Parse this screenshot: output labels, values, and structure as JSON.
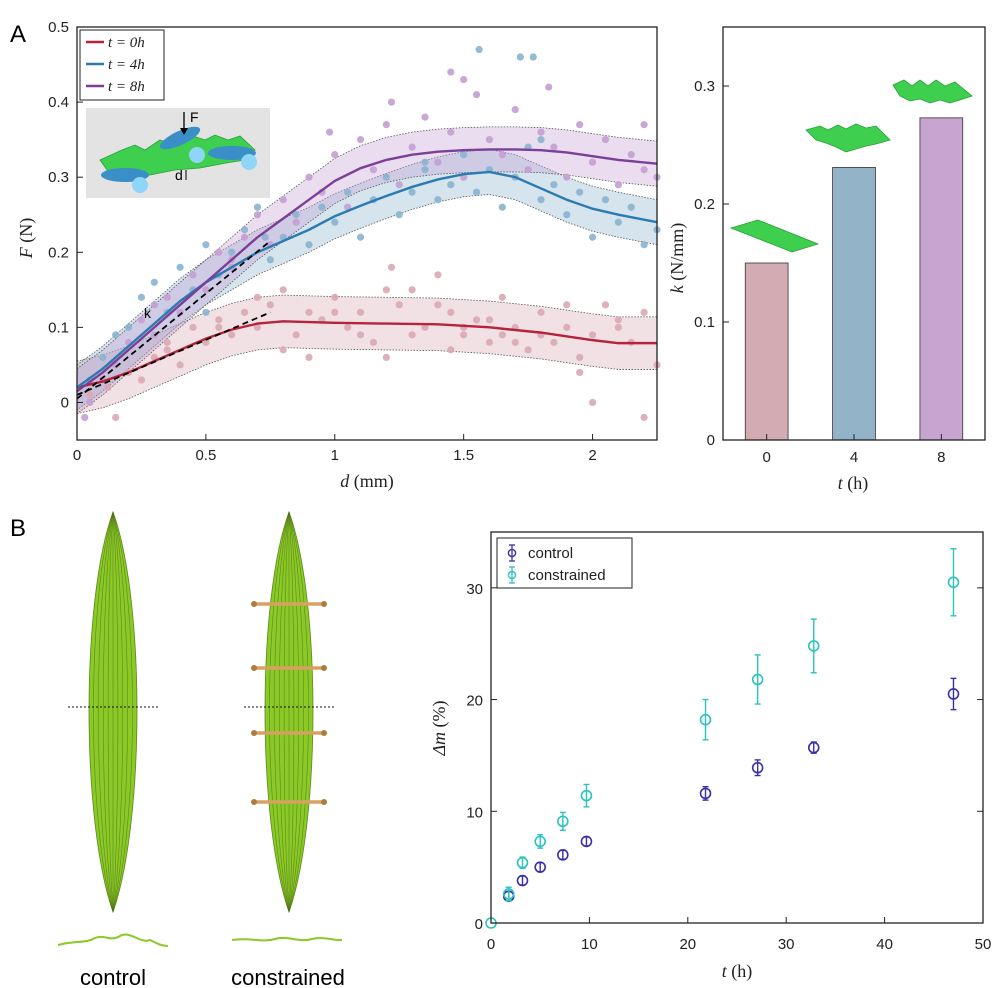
{
  "panel_labels": {
    "a": "A",
    "b": "B"
  },
  "colors": {
    "t0": "#b5243c",
    "t4": "#2b7bb0",
    "t8": "#7b3f98",
    "t0_light": "#d9a9b3",
    "t4_light": "#8ab3cf",
    "t8_light": "#c49fd2",
    "bar_t0": "#d3abb3",
    "bar_t4": "#93b3c8",
    "bar_t8": "#c6a5d1",
    "control": "#3b2fa8",
    "constrained": "#2cc4be",
    "leaf": "#8ac926"
  },
  "icons": {
    "sheet": "green-sheet-icon",
    "rollers": "three-point-bend-icon"
  },
  "inset": {
    "force_label": "F",
    "disp_label": "d",
    "slope_label": "k"
  },
  "captions": {
    "control": "control",
    "constrained": "constrained"
  },
  "chart_data": [
    {
      "id": "force_displacement",
      "type": "scatter",
      "xlabel_var": "d",
      "xlabel_unit": " (mm)",
      "ylabel_var": "F",
      "ylabel_unit": " (N)",
      "xlim": [
        0,
        2.25
      ],
      "ylim": [
        -0.05,
        0.5
      ],
      "xticks": [
        0,
        0.5,
        1,
        1.5,
        2
      ],
      "xtick_labels": [
        "0",
        "0.5",
        "1",
        "1.5",
        "2"
      ],
      "yticks": [
        0,
        0.1,
        0.2,
        0.3,
        0.4,
        0.5
      ],
      "ytick_labels": [
        "0",
        "0.1",
        "0.2",
        "0.3",
        "0.4",
        "0.5"
      ],
      "legend": {
        "position": "top-left",
        "entries": [
          "t = 0h",
          "t = 4h",
          "t = 8h"
        ]
      },
      "series": [
        {
          "name": "t = 0h",
          "fit_x": [
            0,
            0.1,
            0.2,
            0.3,
            0.4,
            0.5,
            0.6,
            0.7,
            0.8,
            0.9,
            1.0,
            1.2,
            1.4,
            1.6,
            1.8,
            2.0,
            2.1,
            2.25
          ],
          "fit_y": [
            0.02,
            0.028,
            0.04,
            0.055,
            0.07,
            0.085,
            0.097,
            0.105,
            0.108,
            0.107,
            0.106,
            0.105,
            0.104,
            0.1,
            0.093,
            0.083,
            0.079,
            0.079
          ],
          "band": 0.035,
          "points_x": [
            0.05,
            0.1,
            0.12,
            0.15,
            0.2,
            0.25,
            0.3,
            0.35,
            0.4,
            0.45,
            0.5,
            0.55,
            0.6,
            0.65,
            0.7,
            0.75,
            0.8,
            0.85,
            0.9,
            0.95,
            1.0,
            1.05,
            1.1,
            1.15,
            1.2,
            1.25,
            1.3,
            1.35,
            1.4,
            1.45,
            1.5,
            1.55,
            1.6,
            1.65,
            1.7,
            1.75,
            1.8,
            1.85,
            1.9,
            1.95,
            2.0,
            2.05,
            2.1,
            2.15,
            2.2,
            2.25,
            0.8,
            1.0,
            1.2,
            1.4,
            1.6,
            1.8,
            2.0,
            2.2,
            0.7,
            0.9,
            1.1,
            1.3,
            1.5,
            1.7,
            1.9,
            2.1,
            0.35,
            0.55,
            1.22,
            1.45,
            1.65,
            1.95
          ],
          "points_y": [
            0.01,
            0.03,
            0.02,
            -0.02,
            0.04,
            0.03,
            0.06,
            0.08,
            0.05,
            0.1,
            0.08,
            0.11,
            0.09,
            0.12,
            0.1,
            0.13,
            0.15,
            0.09,
            0.12,
            0.11,
            0.14,
            0.1,
            0.12,
            0.08,
            0.15,
            0.13,
            0.09,
            0.1,
            0.17,
            0.12,
            0.09,
            0.11,
            0.08,
            0.14,
            0.1,
            0.07,
            0.12,
            0.08,
            0.1,
            0.06,
            0.09,
            0.13,
            0.1,
            0.08,
            0.12,
            0.05,
            0.07,
            0.12,
            0.06,
            0.13,
            0.11,
            0.09,
            0.0,
            -0.02,
            0.14,
            0.06,
            0.09,
            0.15,
            0.1,
            0.08,
            0.13,
            0.11,
            0.07,
            0.1,
            0.18,
            0.07,
            0.09,
            0.04
          ]
        },
        {
          "name": "t = 4h",
          "fit_x": [
            0,
            0.1,
            0.2,
            0.3,
            0.4,
            0.5,
            0.6,
            0.7,
            0.8,
            0.9,
            1.0,
            1.1,
            1.2,
            1.3,
            1.4,
            1.5,
            1.6,
            1.7,
            1.8,
            1.9,
            2.0,
            2.1,
            2.25
          ],
          "fit_y": [
            0.02,
            0.045,
            0.075,
            0.105,
            0.135,
            0.16,
            0.18,
            0.2,
            0.215,
            0.23,
            0.248,
            0.262,
            0.275,
            0.287,
            0.297,
            0.304,
            0.307,
            0.3,
            0.285,
            0.27,
            0.258,
            0.25,
            0.24
          ],
          "band": 0.03,
          "points_x": [
            0.05,
            0.1,
            0.15,
            0.2,
            0.25,
            0.3,
            0.35,
            0.4,
            0.45,
            0.5,
            0.55,
            0.6,
            0.65,
            0.7,
            0.75,
            0.8,
            0.85,
            0.9,
            0.95,
            1.0,
            1.05,
            1.1,
            1.15,
            1.2,
            1.25,
            1.3,
            1.35,
            1.4,
            1.45,
            1.5,
            1.55,
            1.6,
            1.65,
            1.7,
            1.75,
            1.8,
            1.85,
            1.9,
            1.95,
            2.0,
            2.05,
            2.1,
            2.15,
            2.2,
            2.25,
            1.56,
            1.72,
            1.77,
            0.73,
            0.5,
            1.35,
            1.8
          ],
          "points_y": [
            0.03,
            0.06,
            0.09,
            0.1,
            0.14,
            0.16,
            0.12,
            0.18,
            0.15,
            0.21,
            0.17,
            0.2,
            0.23,
            0.26,
            0.19,
            0.22,
            0.25,
            0.21,
            0.26,
            0.24,
            0.28,
            0.22,
            0.27,
            0.3,
            0.25,
            0.28,
            0.32,
            0.27,
            0.29,
            0.33,
            0.28,
            0.31,
            0.26,
            0.3,
            0.34,
            0.27,
            0.29,
            0.25,
            0.28,
            0.22,
            0.27,
            0.24,
            0.26,
            0.21,
            0.23,
            0.47,
            0.46,
            0.46,
            0.22,
            0.12,
            0.31,
            0.35
          ]
        },
        {
          "name": "t = 8h",
          "fit_x": [
            0,
            0.1,
            0.2,
            0.3,
            0.4,
            0.5,
            0.6,
            0.7,
            0.8,
            0.9,
            1.0,
            1.1,
            1.2,
            1.3,
            1.4,
            1.5,
            1.6,
            1.7,
            1.8,
            1.9,
            2.0,
            2.1,
            2.25
          ],
          "fit_y": [
            0.015,
            0.04,
            0.07,
            0.1,
            0.13,
            0.16,
            0.19,
            0.22,
            0.245,
            0.27,
            0.295,
            0.312,
            0.323,
            0.33,
            0.334,
            0.336,
            0.337,
            0.337,
            0.336,
            0.333,
            0.328,
            0.323,
            0.318
          ],
          "band": 0.03,
          "points_x": [
            0.05,
            0.1,
            0.15,
            0.2,
            0.25,
            0.3,
            0.35,
            0.4,
            0.45,
            0.5,
            0.55,
            0.6,
            0.65,
            0.7,
            0.75,
            0.8,
            0.85,
            0.9,
            0.95,
            1.0,
            1.05,
            1.1,
            1.15,
            1.2,
            1.25,
            1.3,
            1.35,
            1.4,
            1.45,
            1.5,
            1.55,
            1.6,
            1.65,
            1.7,
            1.75,
            1.8,
            1.85,
            1.9,
            1.95,
            2.0,
            2.05,
            2.1,
            2.15,
            2.2,
            2.25,
            1.45,
            1.5,
            1.22,
            0.98,
            1.83,
            2.2,
            0.03,
            0.3,
            0.6
          ],
          "points_y": [
            0.0,
            0.03,
            0.05,
            0.08,
            0.11,
            0.09,
            0.14,
            0.12,
            0.17,
            0.15,
            0.2,
            0.18,
            0.22,
            0.25,
            0.21,
            0.27,
            0.24,
            0.3,
            0.28,
            0.33,
            0.26,
            0.35,
            0.31,
            0.37,
            0.29,
            0.34,
            0.38,
            0.32,
            0.36,
            0.3,
            0.41,
            0.35,
            0.33,
            0.39,
            0.31,
            0.36,
            0.34,
            0.3,
            0.37,
            0.32,
            0.35,
            0.29,
            0.33,
            0.31,
            0.3,
            0.44,
            0.43,
            0.4,
            0.36,
            0.42,
            0.37,
            -0.02,
            0.13,
            0.19
          ]
        }
      ]
    },
    {
      "id": "stiffness",
      "type": "bar",
      "categories": [
        "0",
        "4",
        "8"
      ],
      "values": [
        0.15,
        0.231,
        0.273
      ],
      "xlabel_var": "t",
      "xlabel_unit": " (h)",
      "ylabel_var": "k",
      "ylabel_unit": " (N/mm)",
      "ylim": [
        0,
        0.35
      ],
      "yticks": [
        0,
        0.1,
        0.2,
        0.3
      ],
      "ytick_labels": [
        "0",
        "0.1",
        "0.2",
        "0.3"
      ]
    },
    {
      "id": "mass_change",
      "type": "scatter",
      "xlabel_var": "t",
      "xlabel_unit": " (h)",
      "ylabel_var": "Δm",
      "ylabel_unit": " (%)",
      "xlim": [
        0,
        50
      ],
      "ylim": [
        0,
        35
      ],
      "xticks": [
        0,
        10,
        20,
        30,
        40,
        50
      ],
      "xtick_labels": [
        "0",
        "10",
        "20",
        "30",
        "40",
        "50"
      ],
      "yticks": [
        0,
        10,
        20,
        30
      ],
      "ytick_labels": [
        "0",
        "10",
        "20",
        "30"
      ],
      "legend": {
        "position": "top-left",
        "entries": [
          "control",
          "constrained"
        ]
      },
      "series": [
        {
          "name": "control",
          "x": [
            1.8,
            3.2,
            5.0,
            7.3,
            9.7,
            21.8,
            27.1,
            32.8,
            47.0
          ],
          "y": [
            2.4,
            3.8,
            5.0,
            6.1,
            7.3,
            11.6,
            13.9,
            15.7,
            20.5
          ],
          "err": [
            0.4,
            0.4,
            0.4,
            0.4,
            0.4,
            0.6,
            0.7,
            0.5,
            1.4
          ]
        },
        {
          "name": "constrained",
          "x": [
            0,
            1.8,
            3.2,
            5.0,
            7.3,
            9.7,
            21.8,
            27.1,
            32.8,
            47.0
          ],
          "y": [
            0,
            2.6,
            5.4,
            7.3,
            9.1,
            11.4,
            18.2,
            21.8,
            24.8,
            30.5
          ],
          "err": [
            0,
            0.6,
            0.5,
            0.6,
            0.8,
            1.0,
            1.8,
            2.2,
            2.4,
            3.0
          ]
        }
      ]
    }
  ]
}
